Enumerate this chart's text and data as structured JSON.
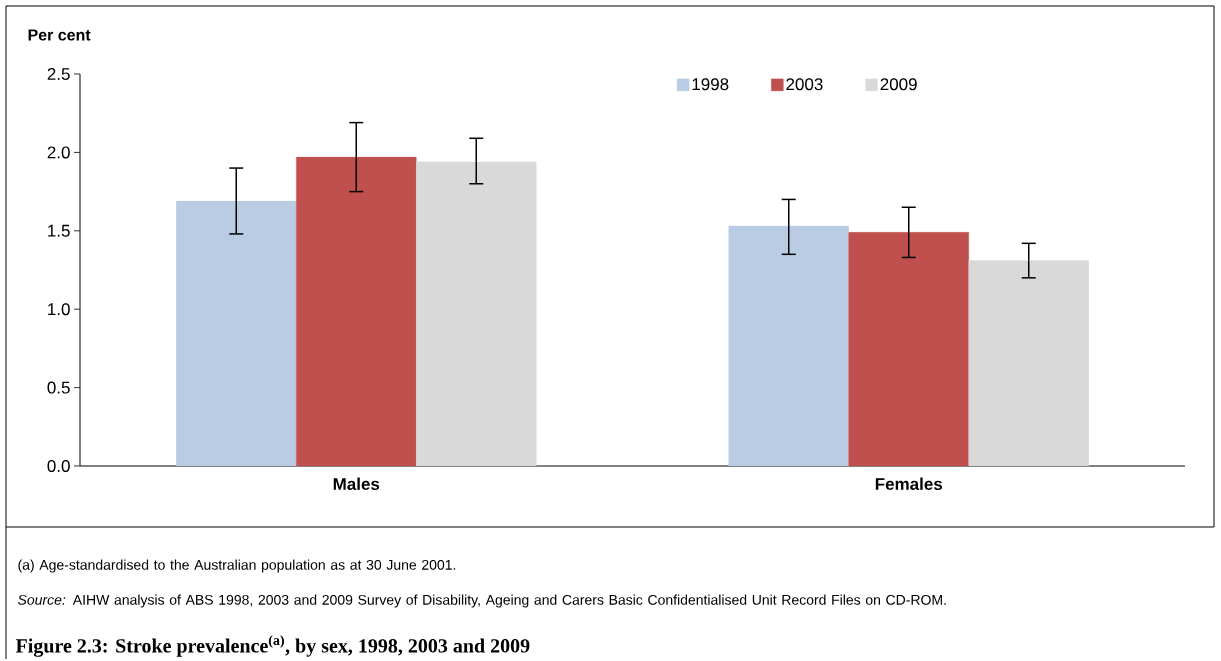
{
  "chart_data": {
    "type": "bar",
    "title": "Figure 2.3: Stroke prevalence$^{(a)}$, by sex, 1998, 2003 and 2009",
    "ylabel": "Per cent",
    "categories": [
      "Males",
      "Females"
    ],
    "series": [
      {
        "name": "1998",
        "color": "#b9cce4",
        "values": [
          1.69,
          1.53
        ],
        "errors": [
          [
            1.48,
            1.9
          ],
          [
            1.35,
            1.7
          ]
        ]
      },
      {
        "name": "2003",
        "color": "#c0504d",
        "values": [
          1.97,
          1.49
        ],
        "errors": [
          [
            1.75,
            2.19
          ],
          [
            1.33,
            1.65
          ]
        ]
      },
      {
        "name": "2009",
        "color": "#d9d9d9",
        "values": [
          1.94,
          1.31
        ],
        "errors": [
          [
            1.8,
            2.09
          ],
          [
            1.2,
            1.42
          ]
        ]
      }
    ],
    "ylim": [
      0,
      2.5
    ],
    "yticks": [
      {
        "value": 0,
        "label": "0.0"
      },
      {
        "value": 0.5,
        "label": "0.5"
      },
      {
        "value": 1,
        "label": "1.0"
      },
      {
        "value": 1.5,
        "label": "1.5"
      },
      {
        "value": 2,
        "label": "2.0"
      },
      {
        "value": 2.5,
        "label": "2.5"
      }
    ],
    "legend": "top right",
    "grid": false,
    "annotations": [
      "(a) Age-standardised to the Australian population as at 30 June 2001.",
      "*Source:* AIHW analysis of ABS 1998, 2003 and 2009 Survey of Disability, Ageing and Carers Basic Confidentialised Unit Record Files on CD-ROM."
    ]
  }
}
